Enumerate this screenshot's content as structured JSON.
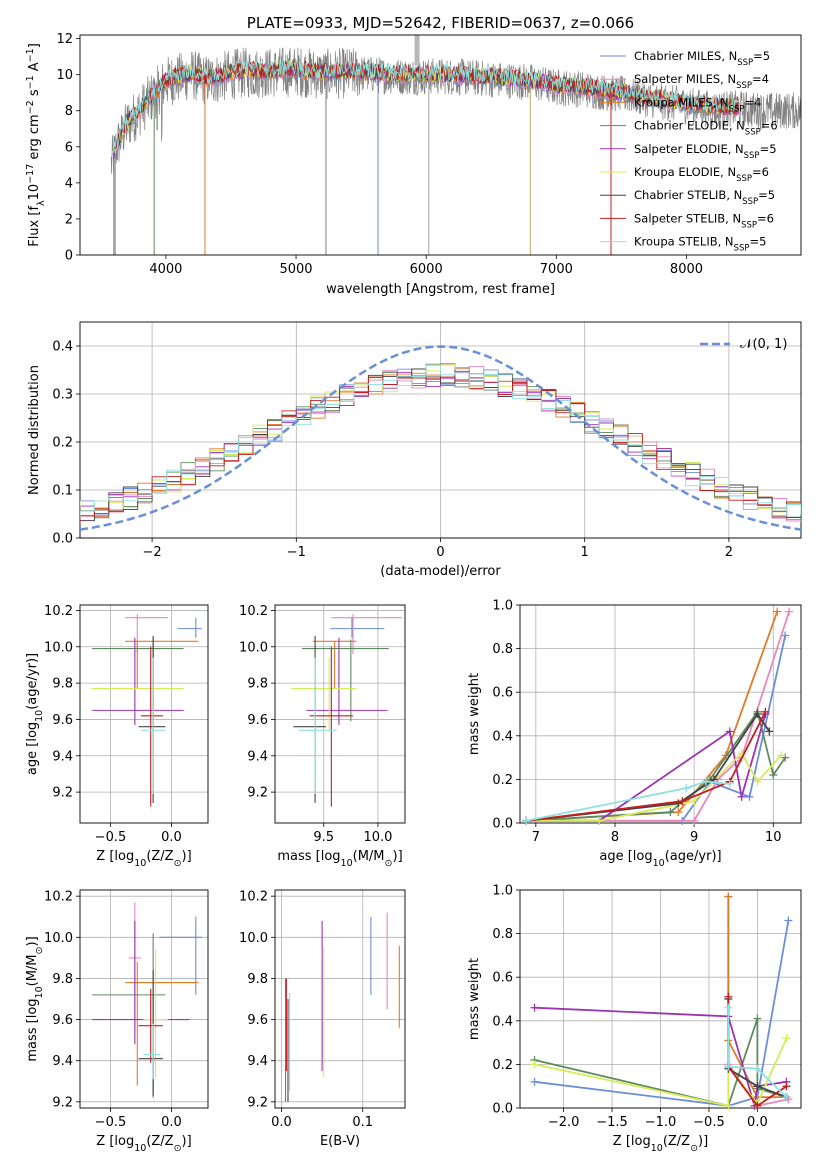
{
  "colors": [
    "#6b8fd6",
    "#e887c0",
    "#e07b2a",
    "#5f8a5f",
    "#9b34b0",
    "#d7ea5a",
    "#444444",
    "#c41e1e",
    "#8fe0e0"
  ],
  "chart_data": [
    {
      "id": "spectrum",
      "type": "line",
      "title": "PLATE=0933, MJD=52642, FIBERID=0637, z=0.066",
      "xlabel": "wavelength [Angstrom, rest frame]",
      "ylabel": "Flux [f$_\\lambda$10$^{-17}$ erg cm$^{-2}$ s$^{-1}$ A$^{-1}$]",
      "ylabel_parts": [
        "Flux [f",
        "λ",
        "10",
        "−17",
        " erg cm",
        "−2",
        " s",
        "−1",
        " A",
        "−1",
        "]"
      ],
      "xlim": [
        3340,
        8880
      ],
      "ylim": [
        0,
        12.2
      ],
      "xticks": [
        4000,
        5000,
        6000,
        7000,
        8000
      ],
      "yticks": [
        0,
        2,
        4,
        6,
        8,
        10,
        12
      ],
      "grid": false,
      "legend_position": "right",
      "observed_continuum": {
        "x": [
          3580,
          3620,
          3700,
          3800,
          3900,
          4000,
          4100,
          4200,
          4300,
          4400,
          4500,
          4600,
          4800,
          5000,
          5200,
          5400,
          5600,
          5800,
          6000,
          6200,
          6400,
          6600,
          6800,
          7000,
          7200,
          7400,
          7600,
          7800,
          8000,
          8200,
          8400,
          8600,
          8800
        ],
        "y": [
          5.0,
          6.0,
          7.2,
          8.0,
          8.8,
          9.6,
          9.8,
          10.0,
          9.7,
          9.8,
          10.0,
          10.1,
          10.1,
          10.2,
          10.0,
          10.1,
          10.0,
          9.9,
          9.9,
          9.9,
          9.8,
          9.7,
          9.6,
          9.3,
          9.2,
          9.0,
          8.8,
          8.5,
          8.3,
          8.1,
          8.1,
          8.0,
          8.0
        ]
      },
      "series": [
        {
          "name": "Chabrier MILES, N$_{SSP}$=5",
          "label": "Chabrier MILES, N",
          "nssp": "=5"
        },
        {
          "name": "Salpeter MILES, N$_{SSP}$=4",
          "label": "Salpeter MILES, N",
          "nssp": "=4"
        },
        {
          "name": "Kroupa MILES, N$_{SSP}$=4",
          "label": "Kroupa MILES, N",
          "nssp": "=4"
        },
        {
          "name": "Chabrier ELODIE, N$_{SSP}$=6",
          "label": "Chabrier ELODIE, N",
          "nssp": "=6"
        },
        {
          "name": "Salpeter ELODIE, N$_{SSP}$=5",
          "label": "Salpeter ELODIE, N",
          "nssp": "=5"
        },
        {
          "name": "Kroupa ELODIE, N$_{SSP}$=6",
          "label": "Kroupa ELODIE, N",
          "nssp": "=6"
        },
        {
          "name": "Chabrier STELIB, N$_{SSP}$=5",
          "label": "Chabrier STELIB, N",
          "nssp": "=5"
        },
        {
          "name": "Salpeter STELIB, N$_{SSP}$=6",
          "label": "Salpeter STELIB, N",
          "nssp": "=6"
        },
        {
          "name": "Kroupa STELIB, N$_{SSP}$=5",
          "label": "Kroupa STELIB, N",
          "nssp": "=5"
        }
      ],
      "legend_subscript": "SSP"
    },
    {
      "id": "residuals",
      "type": "histogram",
      "xlabel": "(data-model)/error",
      "ylabel": "Normed distribution",
      "xlim": [
        -2.5,
        2.5
      ],
      "ylim": [
        0,
        0.45
      ],
      "xticks": [
        -2,
        -1,
        0,
        1,
        2
      ],
      "xtick_labels": [
        "−2",
        "−1",
        "0",
        "1",
        "2"
      ],
      "yticks": [
        0.0,
        0.1,
        0.2,
        0.3,
        0.4
      ],
      "ytick_labels": [
        "0.0",
        "0.1",
        "0.2",
        "0.3",
        "0.4"
      ],
      "grid": true,
      "normal_curve": {
        "label": "𝒩(0, 1)",
        "mean": 0,
        "sigma": 1
      },
      "legend_position": "top-right",
      "bin_width": 0.1
    },
    {
      "id": "age_vs_Z",
      "type": "errorbar",
      "xlabel": "Z [log$_{10}$(Z/Z$_\\odot$)]",
      "ylabel": "age  [log$_{10}$(age/yr)]",
      "xlim": [
        -0.75,
        0.3
      ],
      "ylim": [
        9.03,
        10.23
      ],
      "xticks": [
        -0.5,
        0.0
      ],
      "xtick_labels": [
        "−0.5",
        "0.0"
      ],
      "yticks": [
        9.2,
        9.4,
        9.6,
        9.8,
        10.0,
        10.2
      ],
      "ytick_labels": [
        "9.2",
        "9.4",
        "9.6",
        "9.8",
        "10.0",
        "10.2"
      ],
      "grid": true,
      "points": [
        {
          "x": 0.2,
          "xerr": [
            0.15,
            0.05
          ],
          "y": 10.1,
          "yerr": [
            0.05,
            0.06
          ]
        },
        {
          "x": -0.28,
          "xerr": [
            0.1,
            0.25
          ],
          "y": 10.16,
          "yerr": [
            0.2,
            0.02
          ]
        },
        {
          "x": -0.28,
          "xerr": [
            0.1,
            0.5
          ],
          "y": 10.03,
          "yerr": [
            0.26,
            0.0
          ]
        },
        {
          "x": -0.15,
          "xerr": [
            0.5,
            0.25
          ],
          "y": 9.99,
          "yerr": [
            0.4,
            0.05
          ]
        },
        {
          "x": -0.3,
          "xerr": [
            0.35,
            0.4
          ],
          "y": 9.65,
          "yerr": [
            0.08,
            0.4
          ]
        },
        {
          "x": -0.15,
          "xerr": [
            0.5,
            0.25
          ],
          "y": 9.77,
          "yerr": [
            0.23,
            0.17
          ]
        },
        {
          "x": -0.15,
          "xerr": [
            0.12,
            0.1
          ],
          "y": 9.56,
          "yerr": [
            0.42,
            0.5
          ]
        },
        {
          "x": -0.17,
          "xerr": [
            0.08,
            0.1
          ],
          "y": 9.62,
          "yerr": [
            0.5,
            0.38
          ]
        },
        {
          "x": -0.15,
          "xerr": [
            0.1,
            0.1
          ],
          "y": 9.54,
          "yerr": [
            0.35,
            0.4
          ]
        }
      ]
    },
    {
      "id": "age_vs_mass",
      "type": "errorbar",
      "xlabel": "mass [log$_{10}$(M/M$_\\odot$)]",
      "ylabel": "",
      "xlim": [
        9.05,
        10.25
      ],
      "ylim": [
        9.03,
        10.23
      ],
      "xticks": [
        9.5,
        10.0
      ],
      "xtick_labels": [
        "9.5",
        "10.0"
      ],
      "yticks": [
        9.2,
        9.4,
        9.6,
        9.8,
        10.0,
        10.2
      ],
      "ytick_labels": [
        "9.2",
        "9.4",
        "9.6",
        "9.8",
        "10.0",
        "10.2"
      ],
      "grid": true,
      "points": [
        {
          "x": 9.76,
          "xerr": [
            0.2,
            0.3
          ],
          "y": 10.1,
          "yerr": [
            0.05,
            0.06
          ]
        },
        {
          "x": 9.77,
          "xerr": [
            0.2,
            0.45
          ],
          "y": 10.16,
          "yerr": [
            0.2,
            0.02
          ]
        },
        {
          "x": 9.6,
          "xerr": [
            0.2,
            0.2
          ],
          "y": 10.03,
          "yerr": [
            0.26,
            0.0
          ]
        },
        {
          "x": 9.75,
          "xerr": [
            0.45,
            0.35
          ],
          "y": 9.99,
          "yerr": [
            0.4,
            0.05
          ]
        },
        {
          "x": 9.64,
          "xerr": [
            0.3,
            0.45
          ],
          "y": 9.65,
          "yerr": [
            0.08,
            0.4
          ]
        },
        {
          "x": 9.55,
          "xerr": [
            0.35,
            0.25
          ],
          "y": 9.77,
          "yerr": [
            0.23,
            0.17
          ]
        },
        {
          "x": 9.42,
          "xerr": [
            0.2,
            0.1
          ],
          "y": 9.56,
          "yerr": [
            0.42,
            0.5
          ]
        },
        {
          "x": 9.57,
          "xerr": [
            0.2,
            0.2
          ],
          "y": 9.62,
          "yerr": [
            0.5,
            0.38
          ]
        },
        {
          "x": 9.42,
          "xerr": [
            0.15,
            0.2
          ],
          "y": 9.54,
          "yerr": [
            0.35,
            0.4
          ]
        }
      ]
    },
    {
      "id": "weight_vs_age",
      "type": "line",
      "xlabel": "age  [log$_{10}$(age/yr)]",
      "ylabel": "mass weight",
      "xlim": [
        6.8,
        10.35
      ],
      "ylim": [
        0,
        1
      ],
      "xticks": [
        7,
        8,
        9,
        10
      ],
      "xtick_labels": [
        "7",
        "8",
        "9",
        "10"
      ],
      "yticks": [
        0.0,
        0.2,
        0.4,
        0.6,
        0.8,
        1.0
      ],
      "ytick_labels": [
        "0.0",
        "0.2",
        "0.4",
        "0.6",
        "0.8",
        "1.0"
      ],
      "grid": true,
      "series_xy": [
        {
          "x": [
            6.88,
            8.85,
            9.2,
            9.7,
            10.15
          ],
          "y": [
            0.01,
            0.01,
            0.19,
            0.12,
            0.86
          ]
        },
        {
          "x": [
            6.88,
            9.0,
            9.3,
            9.6,
            10.2
          ],
          "y": [
            0.01,
            0.01,
            0.2,
            0.3,
            0.97
          ]
        },
        {
          "x": [
            6.88,
            8.8,
            9.4,
            10.05
          ],
          "y": [
            0.01,
            0.05,
            0.31,
            0.97
          ]
        },
        {
          "x": [
            6.88,
            8.7,
            9.2,
            9.8,
            10.0,
            10.15
          ],
          "y": [
            0.01,
            0.05,
            0.2,
            0.51,
            0.22,
            0.3
          ]
        },
        {
          "x": [
            6.88,
            7.8,
            9.45,
            9.6,
            9.9
          ],
          "y": [
            0.01,
            0.01,
            0.42,
            0.12,
            0.5
          ]
        },
        {
          "x": [
            6.88,
            7.8,
            9.0,
            9.6,
            9.8,
            10.1
          ],
          "y": [
            0.01,
            0.01,
            0.1,
            0.32,
            0.19,
            0.31
          ]
        },
        {
          "x": [
            6.88,
            8.8,
            9.25,
            9.8,
            9.95
          ],
          "y": [
            0.01,
            0.09,
            0.2,
            0.5,
            0.42
          ]
        },
        {
          "x": [
            6.88,
            8.85,
            9.45,
            9.9
          ],
          "y": [
            0.01,
            0.1,
            0.19,
            0.51
          ]
        },
        {
          "x": [
            6.88,
            8.9,
            9.15,
            9.45
          ],
          "y": [
            0.01,
            0.16,
            0.19,
            0.18
          ]
        }
      ]
    },
    {
      "id": "mass_vs_Z",
      "type": "errorbar",
      "xlabel": "Z [log$_{10}$(Z/Z$_\\odot$)]",
      "ylabel": "mass [log$_{10}$(M/M$_\\odot$)]",
      "xlim": [
        -0.75,
        0.3
      ],
      "ylim": [
        9.17,
        10.23
      ],
      "xticks": [
        -0.5,
        0.0
      ],
      "xtick_labels": [
        "−0.5",
        "0.0"
      ],
      "yticks": [
        9.2,
        9.4,
        9.6,
        9.8,
        10.0,
        10.2
      ],
      "ytick_labels": [
        "9.2",
        "9.4",
        "9.6",
        "9.8",
        "10.0",
        "10.2"
      ],
      "grid": true,
      "points": [
        {
          "x": 0.2,
          "xerr": [
            0.3,
            0.05
          ],
          "y": 10.0,
          "yerr": [
            0.28,
            0.1
          ]
        },
        {
          "x": -0.3,
          "xerr": [
            0.05,
            0.05
          ],
          "y": 9.9,
          "yerr": [
            0.35,
            0.27
          ]
        },
        {
          "x": -0.28,
          "xerr": [
            0.1,
            0.5
          ],
          "y": 9.78,
          "yerr": [
            0.5,
            0.1
          ]
        },
        {
          "x": -0.15,
          "xerr": [
            0.5,
            0.1
          ],
          "y": 9.72,
          "yerr": [
            0.5,
            0.3
          ]
        },
        {
          "x": -0.3,
          "xerr": [
            0.35,
            0.45
          ],
          "y": 9.6,
          "yerr": [
            0.12,
            0.48
          ]
        },
        {
          "x": -0.13,
          "xerr": [
            0.1,
            0.1
          ],
          "y": 9.6,
          "yerr": [
            0.28,
            0.34
          ]
        },
        {
          "x": -0.15,
          "xerr": [
            0.12,
            0.08
          ],
          "y": 9.41,
          "yerr": [
            0.18,
            0.43
          ]
        },
        {
          "x": -0.17,
          "xerr": [
            0.1,
            0.1
          ],
          "y": 9.57,
          "yerr": [
            0.18,
            0.18
          ]
        },
        {
          "x": -0.15,
          "xerr": [
            0.08,
            0.06
          ],
          "y": 9.43,
          "yerr": [
            0.12,
            0.15
          ]
        }
      ]
    },
    {
      "id": "mass_vs_EBV",
      "type": "errorbar",
      "xlabel": "E(B-V)",
      "ylabel": "",
      "xlim": [
        -0.008,
        0.152
      ],
      "ylim": [
        9.17,
        10.23
      ],
      "xticks": [
        0.0,
        0.1
      ],
      "xtick_labels": [
        "0.0",
        "0.1"
      ],
      "yticks": [
        9.2,
        9.4,
        9.6,
        9.8,
        10.0,
        10.2
      ],
      "ytick_labels": [
        "9.2",
        "9.4",
        "9.6",
        "9.8",
        "10.0",
        "10.2"
      ],
      "grid": true,
      "points": [
        {
          "x": 0.11,
          "y": 9.9,
          "yerr": [
            0.18,
            0.2
          ]
        },
        {
          "x": 0.13,
          "y": 9.9,
          "yerr": [
            0.25,
            0.22
          ]
        },
        {
          "x": 0.145,
          "y": 9.78,
          "yerr": [
            0.22,
            0.18
          ]
        },
        {
          "x": 0.005,
          "y": 9.5,
          "yerr": [
            0.3,
            0.3
          ]
        },
        {
          "x": 0.05,
          "y": 9.7,
          "yerr": [
            0.35,
            0.38
          ]
        },
        {
          "x": 0.052,
          "y": 9.6,
          "yerr": [
            0.28,
            0.35
          ]
        },
        {
          "x": 0.008,
          "y": 9.45,
          "yerr": [
            0.25,
            0.25
          ]
        },
        {
          "x": 0.006,
          "y": 9.6,
          "yerr": [
            0.25,
            0.2
          ]
        },
        {
          "x": 0.01,
          "y": 9.45,
          "yerr": [
            0.2,
            0.28
          ]
        }
      ]
    },
    {
      "id": "weight_vs_Z",
      "type": "line",
      "xlabel": "Z [log$_{10}$(Z/Z$_\\odot$)]",
      "ylabel": "mass weight",
      "xlim": [
        -2.45,
        0.45
      ],
      "ylim": [
        0,
        1
      ],
      "xticks": [
        -2.0,
        -1.5,
        -1.0,
        -0.5,
        0.0
      ],
      "xtick_labels": [
        "−2.0",
        "−1.5",
        "−1.0",
        "−0.5",
        "0.0"
      ],
      "yticks": [
        0.0,
        0.2,
        0.4,
        0.6,
        0.8,
        1.0
      ],
      "ytick_labels": [
        "0.0",
        "0.2",
        "0.4",
        "0.6",
        "0.8",
        "1.0"
      ],
      "grid": true,
      "series_xy": [
        {
          "x": [
            -2.3,
            -0.3,
            0.0,
            0.32
          ],
          "y": [
            0.12,
            0.01,
            0.05,
            0.86
          ]
        },
        {
          "x": [
            -0.3,
            -0.3,
            0.0,
            0.32
          ],
          "y": [
            0.97,
            0.2,
            0.01,
            0.04
          ]
        },
        {
          "x": [
            -0.3,
            -0.3,
            0.0,
            0.3
          ],
          "y": [
            0.97,
            0.31,
            0.05,
            0.05
          ]
        },
        {
          "x": [
            -2.3,
            -0.3,
            0.0,
            0.0,
            0.3
          ],
          "y": [
            0.22,
            0.01,
            0.41,
            0.09,
            0.05
          ]
        },
        {
          "x": [
            -2.3,
            -0.3,
            -0.03,
            0.0,
            0.3
          ],
          "y": [
            0.46,
            0.42,
            0.01,
            0.1,
            0.12
          ]
        },
        {
          "x": [
            -2.3,
            -0.3,
            -0.3,
            0.0,
            0.3
          ],
          "y": [
            0.2,
            0.01,
            0.19,
            0.02,
            0.32
          ]
        },
        {
          "x": [
            -0.3,
            -0.3,
            0.0,
            0.3
          ],
          "y": [
            0.5,
            0.18,
            0.1,
            0.05
          ]
        },
        {
          "x": [
            -0.3,
            -0.3,
            0.0,
            0.3
          ],
          "y": [
            0.51,
            0.19,
            0.01,
            0.1
          ]
        },
        {
          "x": [
            -0.3,
            -0.3,
            0.0,
            0.3
          ],
          "y": [
            0.46,
            0.19,
            0.18,
            0.05
          ]
        }
      ]
    }
  ]
}
